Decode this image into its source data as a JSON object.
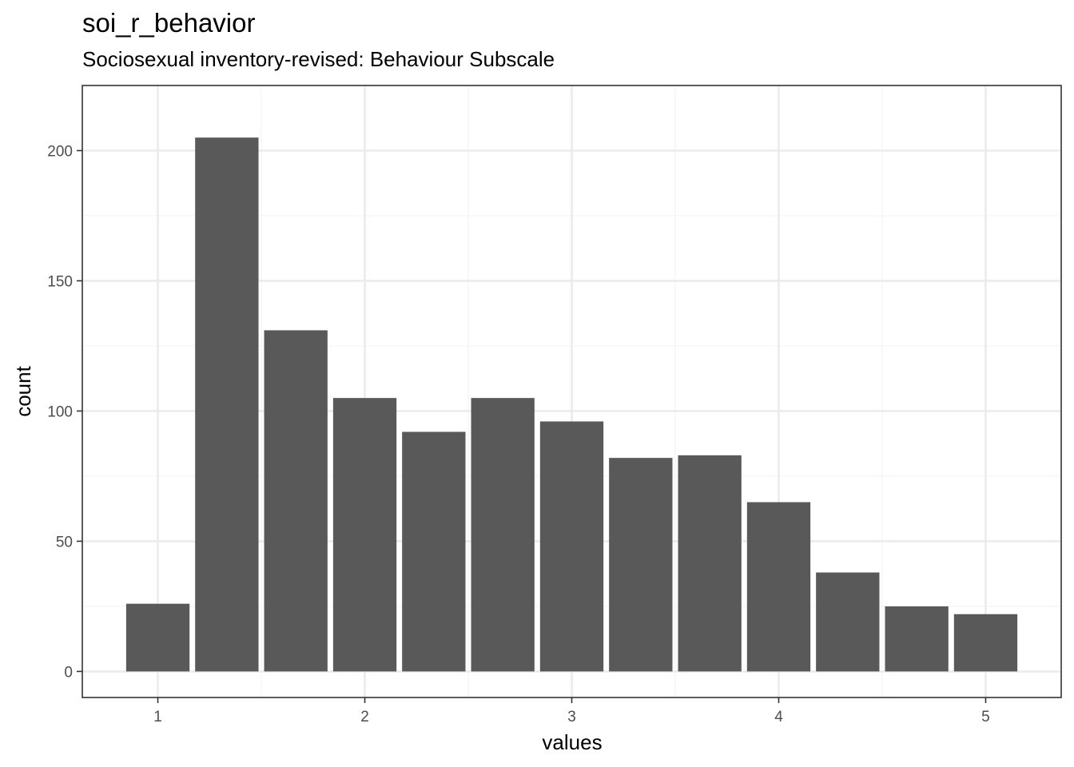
{
  "chart_data": {
    "type": "bar",
    "title": "soi_r_behavior",
    "subtitle": "Sociosexual inventory-revised: Behaviour Subscale",
    "xlabel": "values",
    "ylabel": "count",
    "bin_width": 0.3333,
    "bin_centers": [
      1.0,
      1.3333,
      1.6667,
      2.0,
      2.3333,
      2.6667,
      3.0,
      3.3333,
      3.6667,
      4.0,
      4.3333,
      4.6667,
      5.0
    ],
    "values": [
      26,
      205,
      131,
      105,
      92,
      105,
      96,
      82,
      83,
      65,
      38,
      25,
      22
    ],
    "x_ticks": [
      1,
      2,
      3,
      4,
      5
    ],
    "y_ticks": [
      0,
      50,
      100,
      150,
      200
    ],
    "xlim": [
      0.635,
      5.365
    ],
    "ylim": [
      -10,
      225
    ],
    "grid": true,
    "bar_color": "#595959",
    "panel_border_color": "#333333",
    "grid_major_color": "#ebebeb",
    "grid_minor_color": "#f5f5f5"
  }
}
